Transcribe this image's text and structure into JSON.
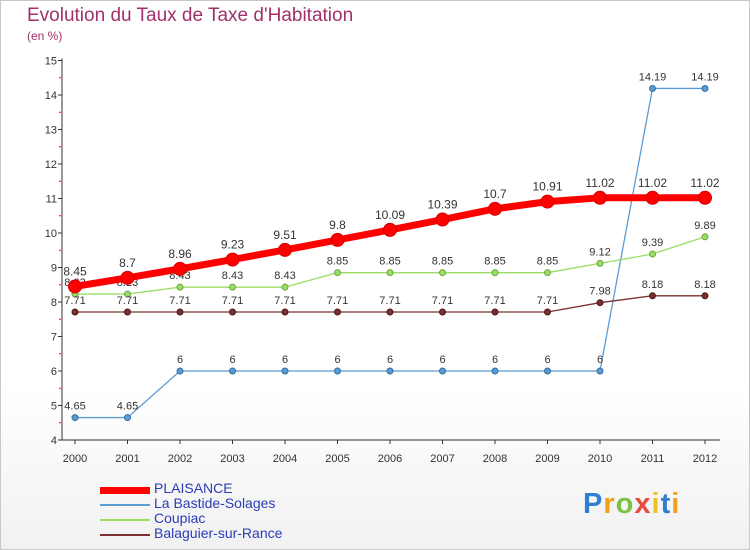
{
  "title": "Evolution du Taux de Taxe d'Habitation",
  "subtitle": "(en %)",
  "logo": "Proxiti",
  "chart_data": {
    "type": "line",
    "title": "Evolution du Taux de Taxe d'Habitation",
    "subtitle": "(en %)",
    "x": [
      "2000",
      "2001",
      "2002",
      "2003",
      "2004",
      "2005",
      "2006",
      "2007",
      "2008",
      "2009",
      "2010",
      "2011",
      "2012"
    ],
    "ylim": [
      4,
      15
    ],
    "yticks": [
      4,
      5,
      6,
      7,
      8,
      9,
      10,
      11,
      12,
      13,
      14,
      15
    ],
    "grid": false,
    "legend": "bottom-left",
    "series": [
      {
        "name": "PLAISANCE",
        "color": "#ff0000",
        "labels": [
          "8.45",
          "8.7",
          "8.96",
          "9.23",
          "9.51",
          "9.8",
          "10.09",
          "10.39",
          "10.7",
          "10.91",
          "11.02",
          "11.02",
          "11.02"
        ],
        "values": [
          8.45,
          8.7,
          8.96,
          9.23,
          9.51,
          9.8,
          10.09,
          10.39,
          10.7,
          10.91,
          11.02,
          11.02,
          11.02
        ]
      },
      {
        "name": "La Bastide-Solages",
        "color": "#5b9bd5",
        "labels": [
          "4.65",
          "4.65",
          "6",
          "6",
          "6",
          "6",
          "6",
          "6",
          "6",
          "6",
          "6",
          "14.19",
          "14.19"
        ],
        "values": [
          4.65,
          4.65,
          6,
          6,
          6,
          6,
          6,
          6,
          6,
          6,
          6,
          14.19,
          14.19
        ]
      },
      {
        "name": "Coupiac",
        "color": "#99dd66",
        "labels": [
          "8.23",
          "8.23",
          "8.43",
          "8.43",
          "8.43",
          "8.85",
          "8.85",
          "8.85",
          "8.85",
          "8.85",
          "9.12",
          "9.39",
          "9.89"
        ],
        "values": [
          8.23,
          8.23,
          8.43,
          8.43,
          8.43,
          8.85,
          8.85,
          8.85,
          8.85,
          8.85,
          9.12,
          9.39,
          9.89
        ]
      },
      {
        "name": "Balaguier-sur-Rance",
        "color": "#7a3030",
        "labels": [
          "7.71",
          "7.71",
          "7.71",
          "7.71",
          "7.71",
          "7.71",
          "7.71",
          "7.71",
          "7.71",
          "7.71",
          "7.98",
          "8.18",
          "8.18"
        ],
        "values": [
          7.71,
          7.71,
          7.71,
          7.71,
          7.71,
          7.71,
          7.71,
          7.71,
          7.71,
          7.71,
          7.98,
          8.18,
          8.18
        ]
      }
    ]
  }
}
